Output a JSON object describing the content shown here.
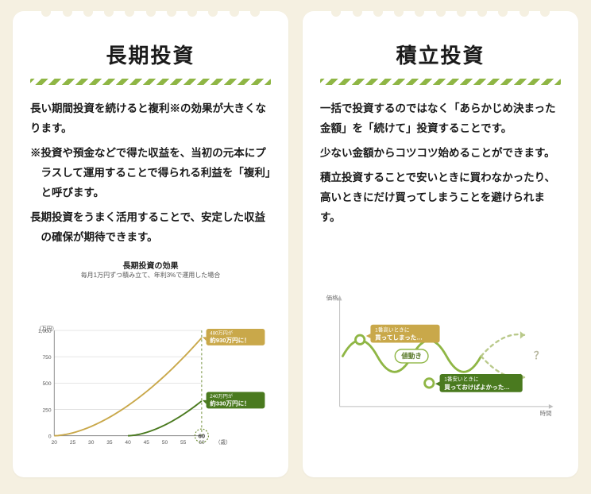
{
  "left": {
    "title": "長期投資",
    "p1": "長い期間投資を続けると複利※の効果が大きくなります。",
    "p2": "※投資や預金などで得た収益を、当初の元本にプラスして運用することで得られる利益を「複利」と呼びます。",
    "p3": "長期投資をうまく活用することで、安定した収益の確保が期待できます。",
    "chart": {
      "title": "長期投資の効果",
      "subtitle": "毎月1万円ずつ積み立て、年利3%で運用した場合",
      "y_unit": "（万円）",
      "x_unit": "（歳）",
      "y_max": 1000,
      "y_ticks": [
        0,
        250,
        500,
        750,
        1000
      ],
      "x_ticks": [
        20,
        25,
        30,
        35,
        40,
        45,
        50,
        55,
        60
      ],
      "target_x": 60,
      "series": [
        {
          "color": "#c9a84a",
          "start_x": 20,
          "end_y": 930,
          "badge_top": "480万円が",
          "badge_main": "約930万円に！",
          "badge_bg": "#c9a84a"
        },
        {
          "color": "#4a7a1f",
          "start_x": 40,
          "end_y": 330,
          "badge_top": "240万円が",
          "badge_main": "約330万円に！",
          "badge_bg": "#4a7a1f"
        }
      ],
      "grid_color": "#d7d7d7",
      "bg": "#ffffff"
    }
  },
  "right": {
    "title": "積立投資",
    "p1": "一括で投資するのではなく「あらかじめ決まった金額」を「続けて」投資することです。",
    "p2": "少ない金額からコツコツ始めることができます。",
    "p3": "積立投資することで安いときに買わなかったり、高いときにだけ買ってしまうことを避けられます。",
    "wave": {
      "y_label": "価格",
      "x_label": "時間",
      "line_color": "#8fb645",
      "dash_color": "#b9c98a",
      "high_label_top": "1番高いときに",
      "high_label_main": "買ってしまった…",
      "high_badge_bg": "#c9a84a",
      "low_label_top": "1番安いときに",
      "low_label_main": "買っておけばよかった…",
      "low_badge_bg": "#4a7a1f",
      "center_label": "値動き",
      "question": "？"
    }
  },
  "colors": {
    "card_bg": "#ffffff",
    "page_bg": "#f5f0e1",
    "text": "#1a1a1a"
  }
}
